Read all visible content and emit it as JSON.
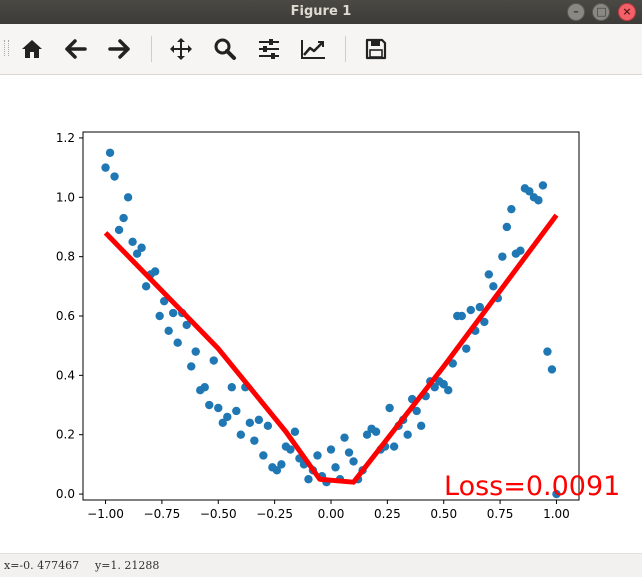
{
  "window": {
    "title": "Figure 1"
  },
  "toolbar": {
    "tools": [
      "home-icon",
      "back-arrow-icon",
      "forward-arrow-icon",
      "pan-move-icon",
      "zoom-magnifier-icon",
      "subplots-sliders-icon",
      "edit-axes-curve-icon",
      "save-floppy-icon"
    ]
  },
  "status": {
    "x_readout": "x=-0. 477467",
    "y_readout": "y=1. 21288"
  },
  "plot": {
    "annotation": "Loss=0.0091",
    "annotation_color": "#ff0000",
    "scatter_color": "#1f77b4",
    "line_color": "#ff0000"
  },
  "chart_data": {
    "type": "scatter",
    "xlim": [
      -1.1,
      1.1
    ],
    "ylim": [
      -0.02,
      1.22
    ],
    "xticks": [
      "−1.00",
      "−0.75",
      "−0.50",
      "−0.25",
      "0.00",
      "0.25",
      "0.50",
      "0.75",
      "1.00"
    ],
    "xtick_values": [
      -1.0,
      -0.75,
      -0.5,
      -0.25,
      0.0,
      0.25,
      0.5,
      0.75,
      1.0
    ],
    "yticks": [
      "0.0",
      "0.2",
      "0.4",
      "0.6",
      "0.8",
      "1.0",
      "1.2"
    ],
    "ytick_values": [
      0.0,
      0.2,
      0.4,
      0.6,
      0.8,
      1.0,
      1.2
    ],
    "grid": false,
    "series": [
      {
        "kind": "scatter",
        "x": [
          -1.0,
          -0.98,
          -0.96,
          -0.94,
          -0.92,
          -0.9,
          -0.88,
          -0.86,
          -0.84,
          -0.82,
          -0.8,
          -0.78,
          -0.76,
          -0.74,
          -0.72,
          -0.7,
          -0.68,
          -0.66,
          -0.64,
          -0.62,
          -0.6,
          -0.58,
          -0.56,
          -0.54,
          -0.52,
          -0.5,
          -0.48,
          -0.46,
          -0.44,
          -0.42,
          -0.4,
          -0.38,
          -0.36,
          -0.34,
          -0.32,
          -0.3,
          -0.28,
          -0.26,
          -0.24,
          -0.22,
          -0.2,
          -0.18,
          -0.16,
          -0.14,
          -0.12,
          -0.1,
          -0.08,
          -0.06,
          -0.04,
          -0.02,
          0.0,
          0.02,
          0.04,
          0.06,
          0.08,
          0.1,
          0.12,
          0.14,
          0.16,
          0.18,
          0.2,
          0.22,
          0.24,
          0.26,
          0.28,
          0.3,
          0.32,
          0.34,
          0.36,
          0.38,
          0.4,
          0.42,
          0.44,
          0.46,
          0.48,
          0.5,
          0.52,
          0.54,
          0.56,
          0.58,
          0.6,
          0.62,
          0.64,
          0.66,
          0.68,
          0.7,
          0.72,
          0.74,
          0.76,
          0.78,
          0.8,
          0.82,
          0.84,
          0.86,
          0.88,
          0.9,
          0.92,
          0.94,
          0.96,
          0.98,
          1.0
        ],
        "y": [
          1.1,
          1.15,
          1.07,
          0.89,
          0.93,
          1.0,
          0.85,
          0.81,
          0.83,
          0.7,
          0.74,
          0.75,
          0.6,
          0.65,
          0.55,
          0.61,
          0.51,
          0.61,
          0.57,
          0.43,
          0.48,
          0.35,
          0.36,
          0.3,
          0.45,
          0.29,
          0.24,
          0.26,
          0.36,
          0.28,
          0.2,
          0.36,
          0.24,
          0.18,
          0.25,
          0.13,
          0.23,
          0.09,
          0.08,
          0.1,
          0.16,
          0.15,
          0.21,
          0.12,
          0.1,
          0.05,
          0.08,
          0.13,
          0.06,
          0.04,
          0.15,
          0.09,
          0.05,
          0.19,
          0.14,
          0.11,
          0.05,
          0.08,
          0.2,
          0.22,
          0.21,
          0.15,
          0.16,
          0.29,
          0.16,
          0.23,
          0.25,
          0.2,
          0.32,
          0.28,
          0.23,
          0.33,
          0.38,
          0.36,
          0.38,
          0.37,
          0.35,
          0.44,
          0.6,
          0.6,
          0.49,
          0.62,
          0.55,
          0.63,
          0.58,
          0.74,
          0.7,
          0.66,
          0.8,
          0.9,
          0.96,
          0.81,
          0.82,
          1.03,
          1.02,
          1.0,
          0.99,
          1.04,
          0.48,
          0.42,
          0.0
        ]
      },
      {
        "kind": "line",
        "x": [
          -1.0,
          -0.5,
          -0.2,
          -0.05,
          0.1,
          0.5,
          1.0
        ],
        "y": [
          0.88,
          0.49,
          0.21,
          0.05,
          0.04,
          0.43,
          0.94
        ]
      }
    ]
  }
}
